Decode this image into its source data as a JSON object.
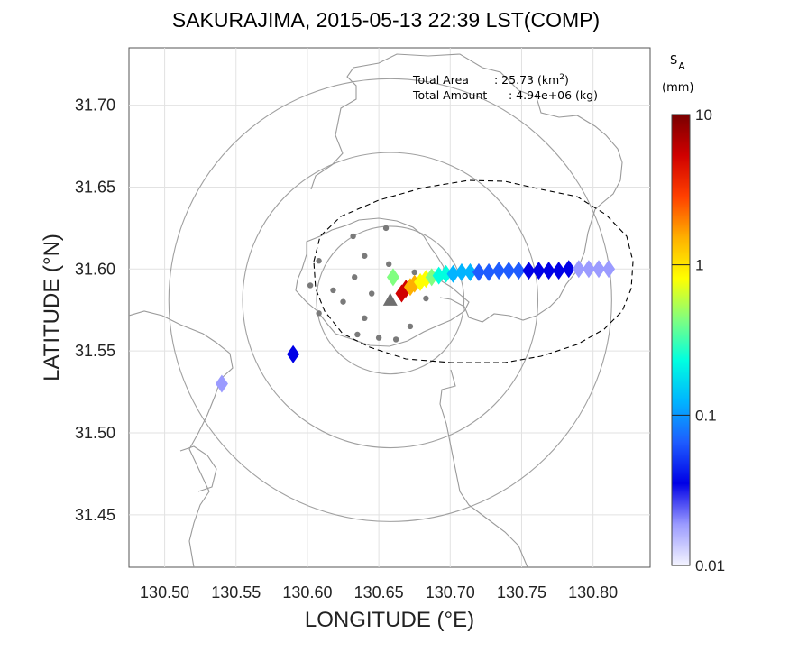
{
  "chart_data": {
    "type": "heatmap",
    "title": "SAKURAJIMA, 2015-05-13 22:39 LST(COMP)",
    "xlabel": "LONGITUDE (°E)",
    "ylabel": "LATITUDE (°N)",
    "xlim": [
      130.475,
      130.84
    ],
    "ylim": [
      31.418,
      31.735
    ],
    "xticks": [
      "130.50",
      "130.55",
      "130.60",
      "130.65",
      "130.70",
      "130.75",
      "130.80"
    ],
    "yticks": [
      "31.70",
      "31.65",
      "31.60",
      "31.55",
      "31.50",
      "31.45"
    ],
    "grid": true,
    "annotations": {
      "area_label": "Total Area",
      "area_value": ": 25.73 (km",
      "area_sup": "2",
      "area_close": ")",
      "amount_label": "Total Amount",
      "amount_value": ": 4.94e+06 (kg)"
    },
    "colorbar": {
      "label_main": "S",
      "label_sub": "A",
      "unit": "(mm)",
      "scale": "log",
      "range": [
        0.01,
        10
      ],
      "ticks": [
        "10",
        "1",
        "0.1",
        "0.01"
      ],
      "colors": [
        "#f4f4ff",
        "#9b9bff",
        "#0000e6",
        "#1e5cff",
        "#00b4ff",
        "#00ffe0",
        "#80ff80",
        "#ffff00",
        "#ffb000",
        "#ff4000",
        "#d00000",
        "#7a0000"
      ]
    },
    "reference_point": {
      "lon": 130.658,
      "lat": 31.581
    },
    "range_rings_km": [
      5,
      10,
      15
    ],
    "deposit": [
      {
        "lon": 130.666,
        "lat": 31.585,
        "value": 6.0
      },
      {
        "lon": 130.669,
        "lat": 31.588,
        "value": 4.0
      },
      {
        "lon": 130.672,
        "lat": 31.589,
        "value": 2.0
      },
      {
        "lon": 130.675,
        "lat": 31.591,
        "value": 1.4
      },
      {
        "lon": 130.679,
        "lat": 31.592,
        "value": 1.0
      },
      {
        "lon": 130.683,
        "lat": 31.594,
        "value": 0.6
      },
      {
        "lon": 130.687,
        "lat": 31.595,
        "value": 0.4
      },
      {
        "lon": 130.692,
        "lat": 31.596,
        "value": 0.3
      },
      {
        "lon": 130.697,
        "lat": 31.597,
        "value": 0.2
      },
      {
        "lon": 130.702,
        "lat": 31.597,
        "value": 0.15
      },
      {
        "lon": 130.708,
        "lat": 31.598,
        "value": 0.12
      },
      {
        "lon": 130.714,
        "lat": 31.598,
        "value": 0.1
      },
      {
        "lon": 130.72,
        "lat": 31.598,
        "value": 0.09
      },
      {
        "lon": 130.727,
        "lat": 31.598,
        "value": 0.08
      },
      {
        "lon": 130.734,
        "lat": 31.599,
        "value": 0.07
      },
      {
        "lon": 130.741,
        "lat": 31.599,
        "value": 0.06
      },
      {
        "lon": 130.748,
        "lat": 31.599,
        "value": 0.05
      },
      {
        "lon": 130.755,
        "lat": 31.599,
        "value": 0.045
      },
      {
        "lon": 130.762,
        "lat": 31.599,
        "value": 0.04
      },
      {
        "lon": 130.769,
        "lat": 31.599,
        "value": 0.035
      },
      {
        "lon": 130.776,
        "lat": 31.599,
        "value": 0.03
      },
      {
        "lon": 130.783,
        "lat": 31.6,
        "value": 0.03
      },
      {
        "lon": 130.79,
        "lat": 31.6,
        "value": 0.025
      },
      {
        "lon": 130.797,
        "lat": 31.6,
        "value": 0.022
      },
      {
        "lon": 130.804,
        "lat": 31.6,
        "value": 0.02
      },
      {
        "lon": 130.811,
        "lat": 31.6,
        "value": 0.018
      },
      {
        "lon": 130.66,
        "lat": 31.595,
        "value": 0.5
      },
      {
        "lon": 130.59,
        "lat": 31.548,
        "value": 0.03
      },
      {
        "lon": 130.54,
        "lat": 31.53,
        "value": 0.02
      }
    ],
    "stations": [
      {
        "lon": 130.632,
        "lat": 31.62
      },
      {
        "lon": 130.655,
        "lat": 31.625
      },
      {
        "lon": 130.608,
        "lat": 31.605
      },
      {
        "lon": 130.64,
        "lat": 31.608
      },
      {
        "lon": 130.657,
        "lat": 31.603
      },
      {
        "lon": 130.675,
        "lat": 31.598
      },
      {
        "lon": 130.602,
        "lat": 31.59
      },
      {
        "lon": 130.618,
        "lat": 31.587
      },
      {
        "lon": 130.633,
        "lat": 31.595
      },
      {
        "lon": 130.645,
        "lat": 31.585
      },
      {
        "lon": 130.625,
        "lat": 31.58
      },
      {
        "lon": 130.683,
        "lat": 31.582
      },
      {
        "lon": 130.608,
        "lat": 31.573
      },
      {
        "lon": 130.64,
        "lat": 31.57
      },
      {
        "lon": 130.672,
        "lat": 31.565
      },
      {
        "lon": 130.635,
        "lat": 31.56
      },
      {
        "lon": 130.65,
        "lat": 31.558
      },
      {
        "lon": 130.662,
        "lat": 31.557
      }
    ]
  }
}
